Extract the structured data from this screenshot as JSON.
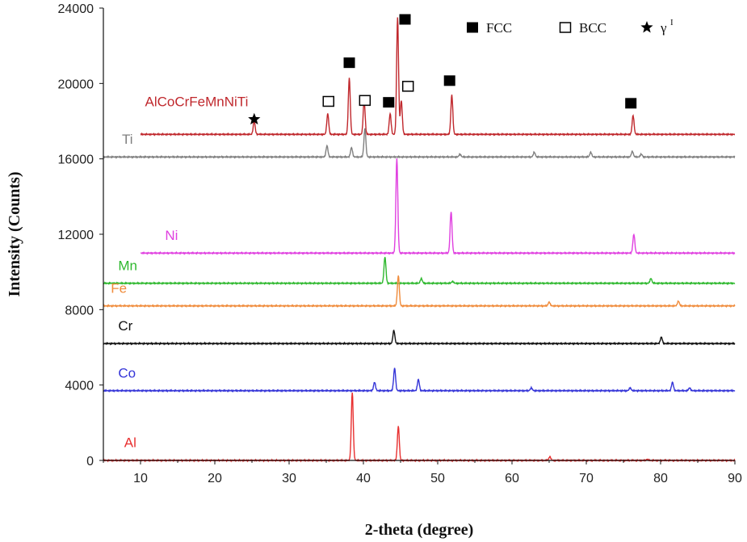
{
  "chart_data": {
    "type": "line",
    "title": "",
    "xlabel": "2-theta (degree)",
    "ylabel": "Intensity (Counts)",
    "xlim": [
      5,
      90
    ],
    "ylim": [
      0,
      24000
    ],
    "xticks": [
      10,
      20,
      30,
      40,
      50,
      60,
      70,
      80,
      90
    ],
    "yticks": [
      0,
      4000,
      8000,
      12000,
      16000,
      20000,
      24000
    ],
    "grid": false,
    "legend_position": "top-right",
    "legend": [
      {
        "symbol": "filled-square",
        "label": "FCC"
      },
      {
        "symbol": "open-square",
        "label": "BCC"
      },
      {
        "symbol": "star",
        "label": "γ",
        "superscript": "I"
      }
    ],
    "series": [
      {
        "name": "AlCoCrFeMnNiTi",
        "color": "#c0282d",
        "x_start": 10,
        "baseline": 17300,
        "peaks": [
          [
            25.3,
            18000
          ],
          [
            35.2,
            18400
          ],
          [
            38.1,
            20300
          ],
          [
            40.1,
            19100
          ],
          [
            43.6,
            18400
          ],
          [
            44.6,
            23500
          ],
          [
            45.1,
            19100
          ],
          [
            51.9,
            19400
          ],
          [
            76.3,
            18300
          ]
        ]
      },
      {
        "name": "Ti",
        "color": "#808080",
        "x_start": 5,
        "baseline": 16100,
        "peaks": [
          [
            35.1,
            16700
          ],
          [
            38.4,
            16600
          ],
          [
            40.2,
            17600
          ],
          [
            53.0,
            16250
          ],
          [
            63.0,
            16350
          ],
          [
            70.6,
            16350
          ],
          [
            76.2,
            16400
          ],
          [
            77.4,
            16250
          ]
        ]
      },
      {
        "name": "Ni",
        "color": "#e040e0",
        "x_start": 10,
        "baseline": 11000,
        "peaks": [
          [
            44.5,
            16000
          ],
          [
            51.8,
            13200
          ],
          [
            76.4,
            12000
          ]
        ]
      },
      {
        "name": "Mn",
        "color": "#2eb82e",
        "x_start": 5,
        "baseline": 9400,
        "peaks": [
          [
            42.9,
            10800
          ],
          [
            47.8,
            9650
          ],
          [
            52.0,
            9500
          ],
          [
            78.7,
            9650
          ]
        ]
      },
      {
        "name": "Fe",
        "color": "#f08c3c",
        "x_start": 5,
        "baseline": 8200,
        "peaks": [
          [
            44.7,
            9800
          ],
          [
            65.0,
            8400
          ],
          [
            82.4,
            8450
          ]
        ]
      },
      {
        "name": "Cr",
        "color": "#111111",
        "x_start": 5,
        "baseline": 6200,
        "peaks": [
          [
            44.1,
            6900
          ],
          [
            80.1,
            6550
          ]
        ]
      },
      {
        "name": "Co",
        "color": "#3535d8",
        "x_start": 5,
        "baseline": 3700,
        "peaks": [
          [
            41.5,
            4150
          ],
          [
            44.2,
            4900
          ],
          [
            47.4,
            4300
          ],
          [
            62.6,
            3850
          ],
          [
            75.9,
            3850
          ],
          [
            81.6,
            4150
          ],
          [
            83.9,
            3850
          ]
        ]
      },
      {
        "name": "Al",
        "color": "#e83030",
        "x_start": 5,
        "baseline": 0,
        "peaks": [
          [
            38.5,
            3600
          ],
          [
            44.7,
            1800
          ],
          [
            65.1,
            200
          ],
          [
            78.2,
            60
          ]
        ]
      }
    ],
    "annotations": [
      {
        "symbol": "star",
        "x": 25.3,
        "y": 18100
      },
      {
        "symbol": "open-square",
        "x": 35.3,
        "y": 19050
      },
      {
        "symbol": "filled-square",
        "x": 38.1,
        "y": 21100
      },
      {
        "symbol": "open-square",
        "x": 40.2,
        "y": 19100
      },
      {
        "symbol": "filled-square",
        "x": 43.4,
        "y": 19000
      },
      {
        "symbol": "filled-square",
        "x": 45.6,
        "y": 23400
      },
      {
        "symbol": "open-square",
        "x": 46.0,
        "y": 19850
      },
      {
        "symbol": "filled-square",
        "x": 51.6,
        "y": 20150
      },
      {
        "symbol": "filled-square",
        "x": 76.0,
        "y": 18950
      }
    ]
  }
}
